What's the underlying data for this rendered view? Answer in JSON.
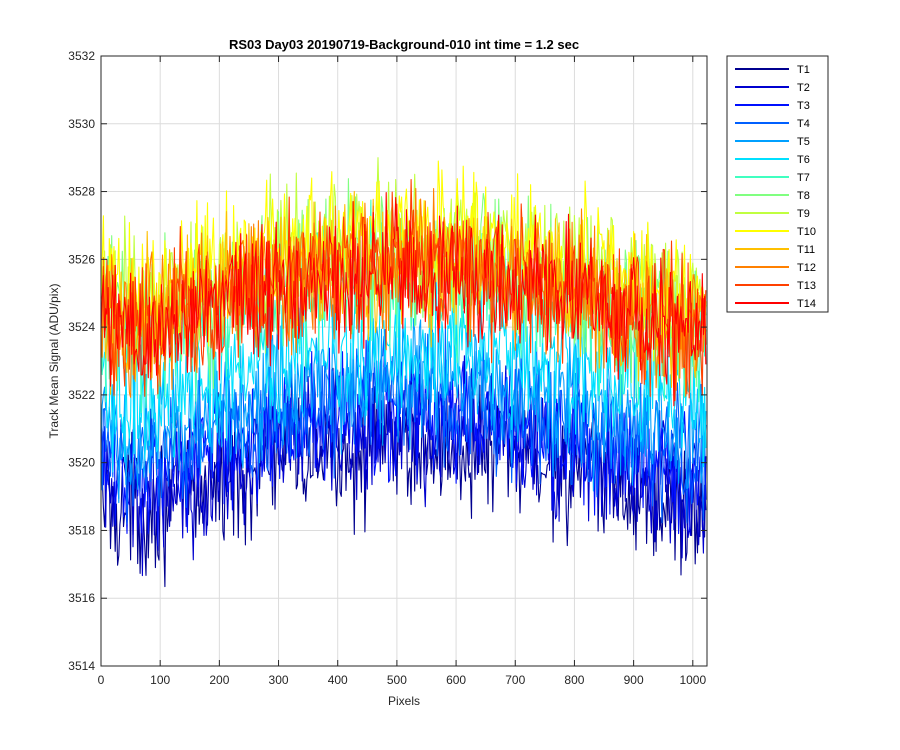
{
  "chart_data": {
    "type": "line",
    "title": "RS03 Day03 20190719-Background-010 int time = 1.2 sec",
    "xlabel": "Pixels",
    "ylabel": "Track Mean Signal (ADU/pix)",
    "xlim": [
      0,
      1024
    ],
    "ylim": [
      3514,
      3532
    ],
    "xticks": [
      0,
      100,
      200,
      300,
      400,
      500,
      600,
      700,
      800,
      900,
      1000
    ],
    "yticks": [
      3514,
      3516,
      3518,
      3520,
      3522,
      3524,
      3526,
      3528,
      3530,
      3532
    ],
    "grid": true,
    "legend_position": "outside-top-right",
    "x": [
      0,
      32,
      64,
      96,
      128,
      160,
      192,
      224,
      256,
      288,
      320,
      352,
      384,
      416,
      448,
      480,
      512,
      544,
      576,
      608,
      640,
      672,
      704,
      736,
      768,
      800,
      832,
      864,
      896,
      928,
      960,
      992,
      1023
    ],
    "series": [
      {
        "name": "T1",
        "color": "#00008f",
        "values": [
          3518.9,
          3518.7,
          3518.6,
          3518.8,
          3519.0,
          3519.2,
          3519.4,
          3519.6,
          3519.8,
          3520.0,
          3520.1,
          3520.2,
          3520.3,
          3520.4,
          3520.5,
          3520.5,
          3520.5,
          3520.5,
          3520.4,
          3520.4,
          3520.3,
          3520.2,
          3520.1,
          3520.0,
          3519.8,
          3519.7,
          3519.5,
          3519.3,
          3519.1,
          3519.0,
          3518.8,
          3518.7,
          3518.6
        ]
      },
      {
        "name": "T2",
        "color": "#0000cf",
        "values": [
          3519.4,
          3519.2,
          3519.1,
          3519.3,
          3519.5,
          3519.7,
          3519.9,
          3520.1,
          3520.3,
          3520.5,
          3520.6,
          3520.7,
          3520.8,
          3520.9,
          3521.0,
          3521.0,
          3521.0,
          3521.0,
          3520.9,
          3520.9,
          3520.8,
          3520.7,
          3520.6,
          3520.5,
          3520.3,
          3520.2,
          3520.0,
          3519.8,
          3519.6,
          3519.5,
          3519.3,
          3519.2,
          3519.1
        ]
      },
      {
        "name": "T3",
        "color": "#0010ff",
        "values": [
          3519.9,
          3519.7,
          3519.6,
          3519.8,
          3520.0,
          3520.2,
          3520.4,
          3520.6,
          3520.8,
          3521.0,
          3521.1,
          3521.2,
          3521.3,
          3521.4,
          3521.5,
          3521.5,
          3521.5,
          3521.5,
          3521.4,
          3521.4,
          3521.3,
          3521.2,
          3521.1,
          3521.0,
          3520.8,
          3520.7,
          3520.5,
          3520.3,
          3520.1,
          3520.0,
          3519.8,
          3519.7,
          3519.6
        ]
      },
      {
        "name": "T4",
        "color": "#0060ff",
        "values": [
          3520.4,
          3520.2,
          3520.1,
          3520.3,
          3520.5,
          3520.7,
          3520.9,
          3521.1,
          3521.3,
          3521.5,
          3521.6,
          3521.7,
          3521.8,
          3521.9,
          3522.0,
          3522.0,
          3522.0,
          3522.0,
          3521.9,
          3521.9,
          3521.8,
          3521.7,
          3521.6,
          3521.5,
          3521.3,
          3521.2,
          3521.0,
          3520.8,
          3520.6,
          3520.5,
          3520.3,
          3520.2,
          3520.1
        ]
      },
      {
        "name": "T5",
        "color": "#00a0ff",
        "values": [
          3521.0,
          3520.8,
          3520.7,
          3520.9,
          3521.1,
          3521.3,
          3521.5,
          3521.7,
          3521.9,
          3522.1,
          3522.2,
          3522.3,
          3522.4,
          3522.5,
          3522.6,
          3522.6,
          3522.6,
          3522.6,
          3522.5,
          3522.5,
          3522.4,
          3522.3,
          3522.2,
          3522.1,
          3521.9,
          3521.8,
          3521.6,
          3521.4,
          3521.2,
          3521.1,
          3520.9,
          3520.8,
          3520.7
        ]
      },
      {
        "name": "T6",
        "color": "#00e0ff",
        "values": [
          3522.0,
          3521.8,
          3521.7,
          3521.9,
          3522.1,
          3522.3,
          3522.5,
          3522.7,
          3522.9,
          3523.1,
          3523.2,
          3523.3,
          3523.4,
          3523.5,
          3523.6,
          3523.6,
          3523.6,
          3523.6,
          3523.5,
          3523.5,
          3523.4,
          3523.3,
          3523.2,
          3523.1,
          3522.9,
          3522.8,
          3522.6,
          3522.4,
          3522.2,
          3522.1,
          3521.9,
          3521.8,
          3521.7
        ]
      },
      {
        "name": "T7",
        "color": "#40ffc0",
        "values": [
          3523.8,
          3523.6,
          3523.5,
          3523.7,
          3523.9,
          3524.1,
          3524.3,
          3524.5,
          3524.7,
          3524.9,
          3525.0,
          3525.1,
          3525.2,
          3525.3,
          3525.4,
          3525.4,
          3525.4,
          3525.4,
          3525.3,
          3525.3,
          3525.2,
          3525.1,
          3525.0,
          3524.9,
          3524.7,
          3524.6,
          3524.4,
          3524.2,
          3524.0,
          3523.9,
          3523.7,
          3523.6,
          3523.5
        ]
      },
      {
        "name": "T8",
        "color": "#80ff80",
        "values": [
          3524.4,
          3524.2,
          3524.1,
          3524.3,
          3524.5,
          3524.7,
          3524.9,
          3525.1,
          3525.3,
          3525.5,
          3525.6,
          3525.7,
          3525.8,
          3525.9,
          3526.0,
          3526.0,
          3526.0,
          3526.0,
          3525.9,
          3525.9,
          3525.8,
          3525.7,
          3525.6,
          3525.5,
          3525.3,
          3525.2,
          3525.0,
          3524.8,
          3524.6,
          3524.5,
          3524.3,
          3524.2,
          3524.1
        ]
      },
      {
        "name": "T9",
        "color": "#c0ff40",
        "values": [
          3524.9,
          3524.7,
          3524.6,
          3524.8,
          3525.0,
          3525.2,
          3525.4,
          3525.6,
          3525.8,
          3526.0,
          3526.1,
          3526.2,
          3526.3,
          3526.4,
          3526.5,
          3526.5,
          3526.5,
          3526.5,
          3526.4,
          3526.4,
          3526.3,
          3526.2,
          3526.1,
          3526.0,
          3525.8,
          3525.7,
          3525.5,
          3525.3,
          3525.1,
          3525.0,
          3524.8,
          3524.7,
          3524.6
        ]
      },
      {
        "name": "T10",
        "color": "#ffff00",
        "values": [
          3525.2,
          3525.0,
          3524.9,
          3525.1,
          3525.3,
          3525.5,
          3525.7,
          3525.9,
          3526.1,
          3526.3,
          3526.4,
          3526.5,
          3526.6,
          3526.7,
          3526.8,
          3526.8,
          3526.8,
          3526.8,
          3526.7,
          3526.7,
          3526.6,
          3526.5,
          3526.4,
          3526.3,
          3526.1,
          3526.0,
          3525.8,
          3525.6,
          3525.4,
          3525.3,
          3525.1,
          3525.0,
          3524.9
        ]
      },
      {
        "name": "T11",
        "color": "#ffc000",
        "values": [
          3524.5,
          3524.3,
          3524.2,
          3524.4,
          3524.6,
          3524.8,
          3525.0,
          3525.2,
          3525.4,
          3525.6,
          3525.7,
          3525.8,
          3525.9,
          3526.0,
          3526.1,
          3526.1,
          3526.1,
          3526.1,
          3526.0,
          3526.0,
          3525.9,
          3525.8,
          3525.7,
          3525.6,
          3525.4,
          3525.3,
          3525.1,
          3524.9,
          3524.7,
          3524.6,
          3524.4,
          3524.3,
          3524.2
        ]
      },
      {
        "name": "T12",
        "color": "#ff8000",
        "values": [
          3524.3,
          3524.1,
          3524.0,
          3524.2,
          3524.4,
          3524.6,
          3524.8,
          3525.0,
          3525.2,
          3525.4,
          3525.5,
          3525.6,
          3525.7,
          3525.8,
          3525.9,
          3525.9,
          3525.9,
          3525.9,
          3525.8,
          3525.8,
          3525.7,
          3525.6,
          3525.5,
          3525.4,
          3525.2,
          3525.1,
          3524.9,
          3524.7,
          3524.5,
          3524.4,
          3524.2,
          3524.1,
          3524.0
        ]
      },
      {
        "name": "T13",
        "color": "#ff4000",
        "values": [
          3524.2,
          3524.0,
          3523.9,
          3524.1,
          3524.3,
          3524.5,
          3524.7,
          3524.9,
          3525.1,
          3525.3,
          3525.4,
          3525.5,
          3525.6,
          3525.7,
          3525.8,
          3525.8,
          3525.8,
          3525.8,
          3525.7,
          3525.7,
          3525.6,
          3525.5,
          3525.4,
          3525.3,
          3525.1,
          3525.0,
          3524.8,
          3524.6,
          3524.4,
          3524.3,
          3524.1,
          3524.0,
          3523.9
        ]
      },
      {
        "name": "T14",
        "color": "#ff0000",
        "values": [
          3524.1,
          3523.9,
          3523.8,
          3524.0,
          3524.2,
          3524.4,
          3524.6,
          3524.8,
          3525.0,
          3525.2,
          3525.3,
          3525.4,
          3525.5,
          3525.6,
          3525.7,
          3525.7,
          3525.7,
          3525.7,
          3525.6,
          3525.6,
          3525.5,
          3525.4,
          3525.3,
          3525.2,
          3525.0,
          3524.9,
          3524.7,
          3524.5,
          3524.3,
          3524.2,
          3524.0,
          3523.9,
          3523.8
        ]
      }
    ]
  }
}
